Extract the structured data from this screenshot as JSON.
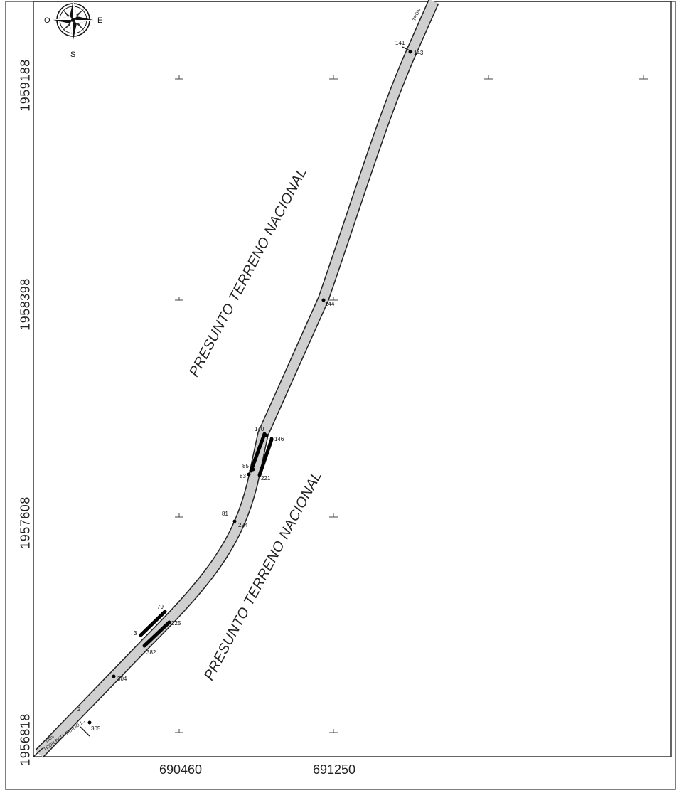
{
  "map": {
    "zone_labels": [
      "PRESUNTO TERRENO NACIONAL",
      "PRESUNTO TERRENO NACIONAL"
    ],
    "y_axis_labels": [
      "1959188",
      "1958398",
      "1957608",
      "1956818"
    ],
    "x_axis_labels": [
      "690460",
      "691250"
    ],
    "compass": {
      "west": "O",
      "east": "E",
      "south": "S"
    },
    "points": [
      "141",
      "143",
      "144",
      "140",
      "146",
      "85",
      "83",
      "221",
      "81",
      "224",
      "79",
      "3",
      "225",
      "382",
      "304",
      "2",
      "1",
      "305"
    ],
    "route_labels": [
      "DDV",
      "TRON BATA TRAMO 1",
      "TRON"
    ],
    "colors": {
      "corridor_fill": "#cfcfcf",
      "line": "#222222",
      "segment": "#000000"
    }
  }
}
